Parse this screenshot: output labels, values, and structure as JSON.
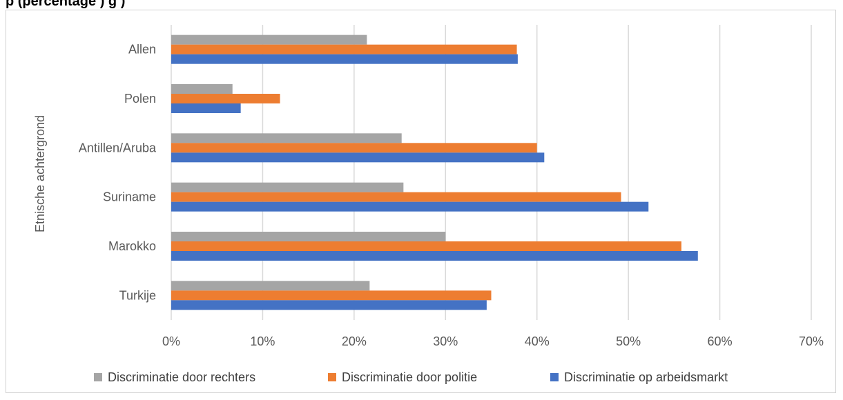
{
  "title": "p                                   (percentage                                                                                    )                                                   g   )",
  "chart_data": {
    "type": "bar",
    "orientation": "horizontal",
    "title": "",
    "ylabel": "Etnische achtergrond",
    "xlabel": "",
    "categories": [
      "Allen",
      "Polen",
      "Antillen/Aruba",
      "Suriname",
      "Marokko",
      "Turkije"
    ],
    "xlim": [
      0,
      70
    ],
    "xticks": [
      "0%",
      "10%",
      "20%",
      "30%",
      "40%",
      "50%",
      "60%",
      "70%"
    ],
    "grid": true,
    "legend_position": "bottom",
    "series": [
      {
        "name": "Discriminatie door rechters",
        "color": "#a5a5a5",
        "values": [
          21.4,
          6.7,
          25.2,
          25.4,
          30.0,
          21.7
        ]
      },
      {
        "name": "Discriminatie door politie",
        "color": "#ed7d31",
        "values": [
          37.8,
          11.9,
          40.0,
          49.2,
          55.8,
          35.0
        ]
      },
      {
        "name": "Discriminatie op arbeidsmarkt",
        "color": "#4472c4",
        "values": [
          37.9,
          7.6,
          40.8,
          52.2,
          57.6,
          34.5
        ]
      }
    ]
  }
}
